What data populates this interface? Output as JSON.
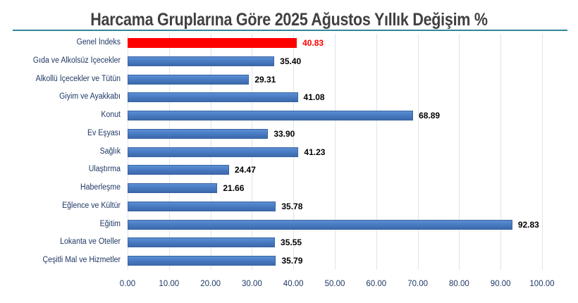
{
  "chart_data": {
    "type": "bar",
    "orientation": "horizontal",
    "title": "Harcama Gruplarına Göre 2025 Ağustos  Yıllık Değişim %",
    "xlabel": "",
    "ylabel": "",
    "xlim": [
      0,
      100
    ],
    "grid": true,
    "legend": null,
    "categories": [
      "Genel İndeks",
      "Gıda ve Alkolsüz İçecekler",
      "Alkollü İçecekler ve Tütün",
      "Giyim ve Ayakkabı",
      "Konut",
      "Ev Eşyası",
      "Sağlık",
      "Ulaştırma",
      "Haberleşme",
      "Eğlence ve Kültür",
      "Eğitim",
      "Lokanta ve Oteller",
      "Çeşitli Mal ve Hizmetler"
    ],
    "values": [
      40.83,
      35.4,
      29.31,
      41.08,
      68.89,
      33.9,
      41.23,
      24.47,
      21.66,
      35.78,
      92.83,
      35.55,
      35.79
    ],
    "value_labels": [
      "40.83",
      "35.40",
      "29.31",
      "41.08",
      "68.89",
      "33.90",
      "41.23",
      "24.47",
      "21.66",
      "35.78",
      "92.83",
      "35.55",
      "35.79"
    ],
    "highlight_index": 0,
    "x_ticks": [
      "0.00",
      "10.00",
      "20.00",
      "30.00",
      "40.00",
      "50.00",
      "60.00",
      "70.00",
      "80.00",
      "90.00",
      "100.00"
    ],
    "colors": {
      "bar": "#4a7cc3",
      "highlight": "#ff0000",
      "title": "#404040",
      "title_rule": "#31849b",
      "axis_text": "#1f3864",
      "gridline": "#dbe5f1"
    }
  }
}
